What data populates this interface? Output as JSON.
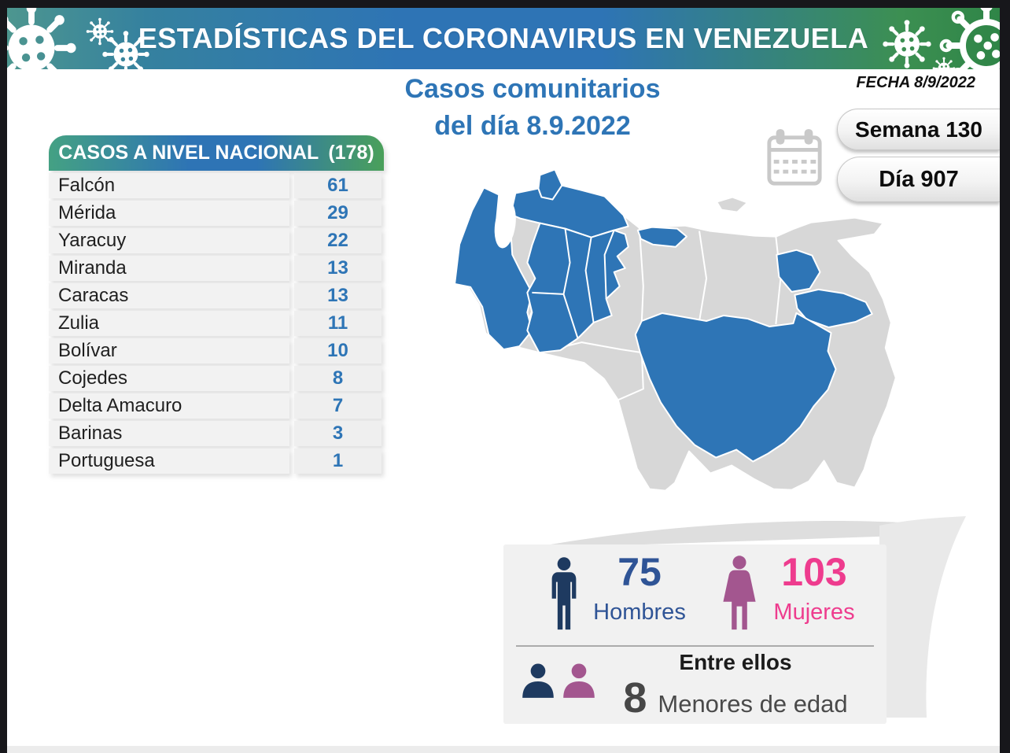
{
  "header": {
    "title": "ESTADÍSTICAS DEL CORONAVIRUS EN VENEZUELA",
    "gradient": [
      "#4d968f",
      "#2e74b5",
      "#2f8547"
    ]
  },
  "subtitle": {
    "line1": "Casos comunitarios",
    "line2": "del día 8.9.2022",
    "color": "#2e75b6"
  },
  "date": {
    "label": "FECHA 8/9/2022"
  },
  "badges": {
    "week": "Semana 130",
    "day": "Día 907"
  },
  "cases_table": {
    "title": "CASOS A NIVEL NACIONAL",
    "total": "(178)",
    "value_color": "#2e75b6",
    "rows": [
      {
        "state": "Falcón",
        "value": "61"
      },
      {
        "state": "Mérida",
        "value": "29"
      },
      {
        "state": "Yaracuy",
        "value": "22"
      },
      {
        "state": "Miranda",
        "value": "13"
      },
      {
        "state": "Caracas",
        "value": "13"
      },
      {
        "state": "Zulia",
        "value": "11"
      },
      {
        "state": "Bolívar",
        "value": "10"
      },
      {
        "state": "Cojedes",
        "value": "8"
      },
      {
        "state": "Delta Amacuro",
        "value": "7"
      },
      {
        "state": "Barinas",
        "value": "3"
      },
      {
        "state": "Portuguesa",
        "value": "1"
      }
    ]
  },
  "map": {
    "highlight_color": "#2e75b6",
    "base_color": "#d7d7d7",
    "highlighted_states": [
      "Falcón",
      "Mérida",
      "Yaracuy",
      "Miranda",
      "Caracas",
      "Zulia",
      "Bolívar",
      "Cojedes",
      "Delta Amacuro",
      "Barinas",
      "Portuguesa"
    ]
  },
  "demographics": {
    "men": {
      "value": "75",
      "label": "Hombres",
      "text_color": "#2f5496",
      "icon_color": "#1e3a60"
    },
    "women": {
      "value": "103",
      "label": "Mujeres",
      "text_color": "#ee3c8e",
      "icon_color": "#a3568f"
    },
    "minors": {
      "value": "8",
      "line1": "Entre ellos",
      "line2": "Menores de edad"
    }
  },
  "chart_data": {
    "type": "table",
    "title": "CASOS A NIVEL NACIONAL (178)",
    "categories": [
      "Falcón",
      "Mérida",
      "Yaracuy",
      "Miranda",
      "Caracas",
      "Zulia",
      "Bolívar",
      "Cojedes",
      "Delta Amacuro",
      "Barinas",
      "Portuguesa"
    ],
    "values": [
      61,
      29,
      22,
      13,
      13,
      11,
      10,
      8,
      7,
      3,
      1
    ],
    "total": 178,
    "date_shown": "8.9.2022",
    "week": 130,
    "day": 907,
    "men": 75,
    "women": 103,
    "minors": 8,
    "annotations": [
      "Casos comunitarios del día 8.9.2022",
      "FECHA 8/9/2022",
      "Semana 130",
      "Día 907",
      "Entre ellos 8 Menores de edad"
    ]
  }
}
